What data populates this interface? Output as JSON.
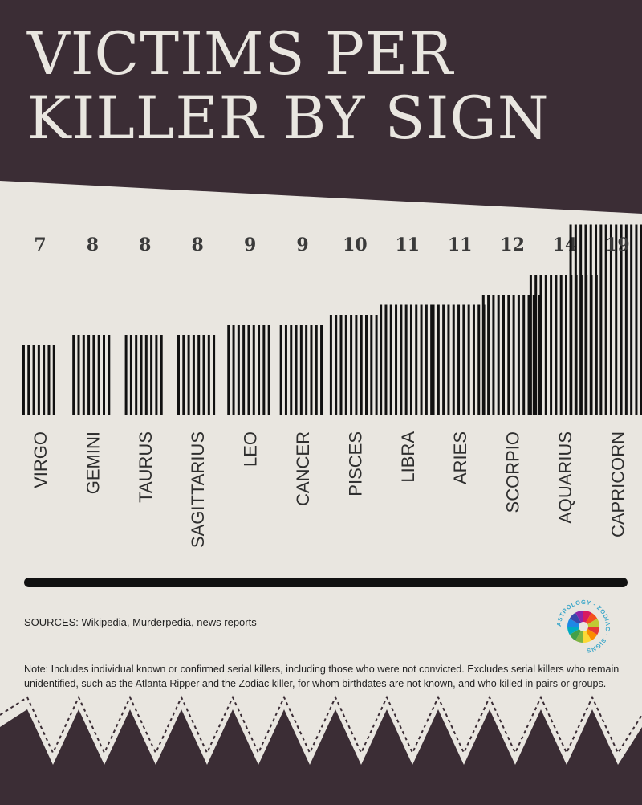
{
  "title": {
    "line1": "VICTIMS PER",
    "line2": "KILLER BY SIGN"
  },
  "sources": "SOURCES: Wikipedia, Murderpedia, news reports",
  "note": "Note: Includes individual known or confirmed serial killers, including those who were not convicted. Excludes serial killers who remain unidentified, such as the Atlanta Ripper and the Zodiac killer, for whom birthdates are not known, and who killed in pairs or groups.",
  "logo": {
    "text": "ASTROLOGY · ZODIAC · SIGNS"
  },
  "colors": {
    "dark": "#3b2d35",
    "paper": "#e9e6e0",
    "ink": "#111111",
    "number": "#3a3a3a",
    "label": "#2e2e2e"
  },
  "chart_data": {
    "type": "bar",
    "title": "VICTIMS PER KILLER BY SIGN",
    "categories": [
      "VIRGO",
      "GEMINI",
      "TAURUS",
      "SAGITTARIUS",
      "LEO",
      "CANCER",
      "PISCES",
      "LIBRA",
      "ARIES",
      "SCORPIO",
      "AQUARIUS",
      "CAPRICORN"
    ],
    "values": [
      7,
      8,
      8,
      8,
      9,
      9,
      10,
      11,
      11,
      12,
      14,
      19
    ],
    "value_labels": [
      "7",
      "8",
      "8",
      "8",
      "9",
      "9",
      "10",
      "11",
      "11",
      "12",
      "14",
      "19"
    ],
    "mark": "tally",
    "grid": false
  }
}
